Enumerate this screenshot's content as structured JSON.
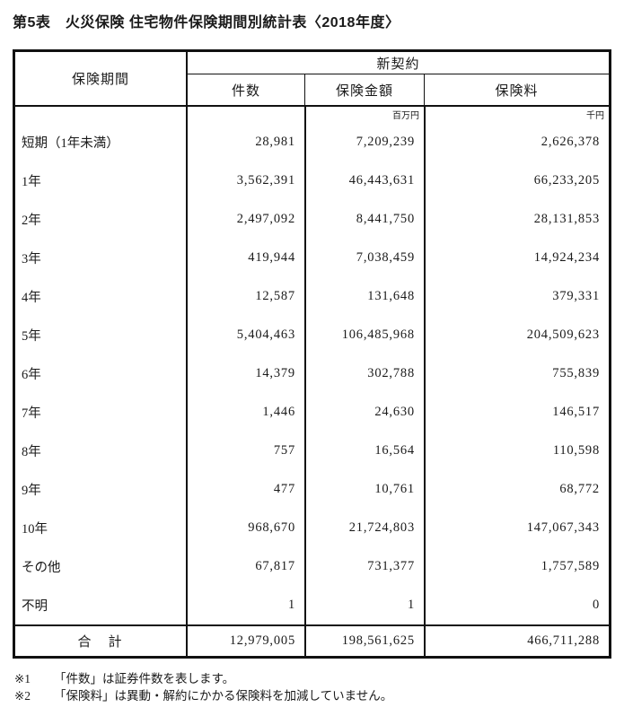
{
  "title": "第5表　火災保険 住宅物件保険期間別統計表〈2018年度〉",
  "colors": {
    "background": "#ffffff",
    "text": "#1a1a1a",
    "border": "#111111"
  },
  "table": {
    "header": {
      "period": "保険期間",
      "group": "新契約",
      "columns": [
        "件数",
        "保険金額",
        "保険料"
      ],
      "units": {
        "amount": "百万円",
        "premium": "千円"
      }
    },
    "rows": [
      {
        "label": "短期（1年未満）",
        "cases": "28,981",
        "amount": "7,209,239",
        "premium": "2,626,378"
      },
      {
        "label": "1年",
        "cases": "3,562,391",
        "amount": "46,443,631",
        "premium": "66,233,205"
      },
      {
        "label": "2年",
        "cases": "2,497,092",
        "amount": "8,441,750",
        "premium": "28,131,853"
      },
      {
        "label": "3年",
        "cases": "419,944",
        "amount": "7,038,459",
        "premium": "14,924,234"
      },
      {
        "label": "4年",
        "cases": "12,587",
        "amount": "131,648",
        "premium": "379,331"
      },
      {
        "label": "5年",
        "cases": "5,404,463",
        "amount": "106,485,968",
        "premium": "204,509,623"
      },
      {
        "label": "6年",
        "cases": "14,379",
        "amount": "302,788",
        "premium": "755,839"
      },
      {
        "label": "7年",
        "cases": "1,446",
        "amount": "24,630",
        "premium": "146,517"
      },
      {
        "label": "8年",
        "cases": "757",
        "amount": "16,564",
        "premium": "110,598"
      },
      {
        "label": "9年",
        "cases": "477",
        "amount": "10,761",
        "premium": "68,772"
      },
      {
        "label": "10年",
        "cases": "968,670",
        "amount": "21,724,803",
        "premium": "147,067,343"
      },
      {
        "label": "その他",
        "cases": "67,817",
        "amount": "731,377",
        "premium": "1,757,589"
      },
      {
        "label": "不明",
        "cases": "1",
        "amount": "1",
        "premium": "0"
      }
    ],
    "total": {
      "label": "合　計",
      "cases": "12,979,005",
      "amount": "198,561,625",
      "premium": "466,711,288"
    }
  },
  "footnotes": [
    {
      "marker": "※1",
      "text": "「件数」は証券件数を表します。"
    },
    {
      "marker": "※2",
      "text": "「保険料」は異動・解約にかかる保険料を加減していません。"
    }
  ]
}
